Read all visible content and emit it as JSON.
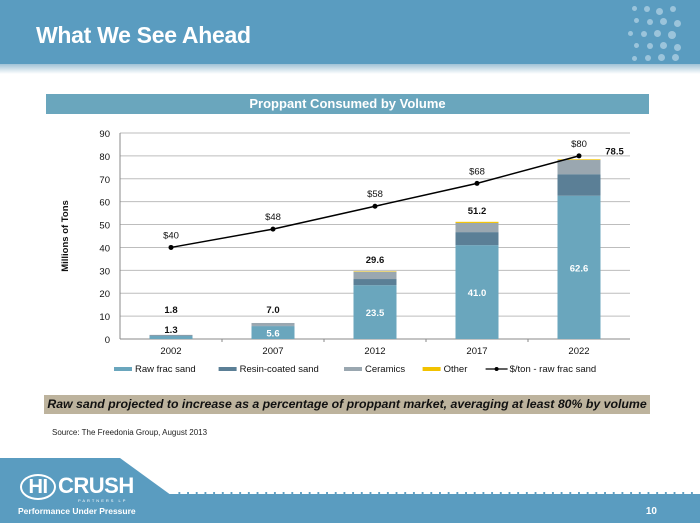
{
  "slide": {
    "title": "What We See Ahead",
    "chart_header": "Proppant Consumed by Volume",
    "note": "Raw sand projected to increase as a percentage of proppant market, averaging at least 80% by volume",
    "source": "Source: The Freedonia Group, August 2013",
    "page_number": "10",
    "logo": {
      "hi": "HI",
      "name": "CRUSH",
      "sub": "PARTNERS LP",
      "tagline": "Performance Under Pressure"
    }
  },
  "colors": {
    "header": "#5a9cc0",
    "raw": "#6aa6bd",
    "resin": "#5b7f96",
    "ceramics": "#9aa7b0",
    "other": "#f2c200",
    "line": "#000000"
  },
  "chart_data": {
    "type": "bar",
    "stacked": true,
    "title": "Proppant Consumed by Volume",
    "xlabel": "",
    "ylabel": "Millions of Tons",
    "ylim": [
      0,
      90
    ],
    "yticks": [
      0,
      10,
      20,
      30,
      40,
      50,
      60,
      70,
      80,
      90
    ],
    "grid": true,
    "legend_position": "bottom",
    "categories": [
      "2002",
      "2007",
      "2012",
      "2017",
      "2022"
    ],
    "series": [
      {
        "name": "Raw frac sand",
        "color_key": "raw",
        "values": [
          1.3,
          5.6,
          23.5,
          41.0,
          62.6
        ]
      },
      {
        "name": "Resin-coated sand",
        "color_key": "resin",
        "values": [
          0.2,
          0.2,
          2.7,
          5.7,
          9.4
        ]
      },
      {
        "name": "Ceramics",
        "color_key": "ceramics",
        "values": [
          0.3,
          1.2,
          3.2,
          4.0,
          6.2
        ]
      },
      {
        "name": "Other",
        "color_key": "other",
        "values": [
          0.0,
          0.0,
          0.2,
          0.5,
          0.3
        ]
      }
    ],
    "totals": [
      1.8,
      7.0,
      29.6,
      51.2,
      78.5
    ],
    "total_labels": [
      "1.8",
      "7.0",
      "29.6",
      "51.2",
      "78.5"
    ],
    "raw_labels": [
      "1.3",
      "5.6",
      "23.5",
      "41.0",
      "62.6"
    ],
    "line_series": {
      "name": "$/ton - raw frac sand",
      "values": [
        40,
        48,
        58,
        68,
        80
      ],
      "labels": [
        "$40",
        "$48",
        "$58",
        "$68",
        "$80"
      ]
    }
  }
}
